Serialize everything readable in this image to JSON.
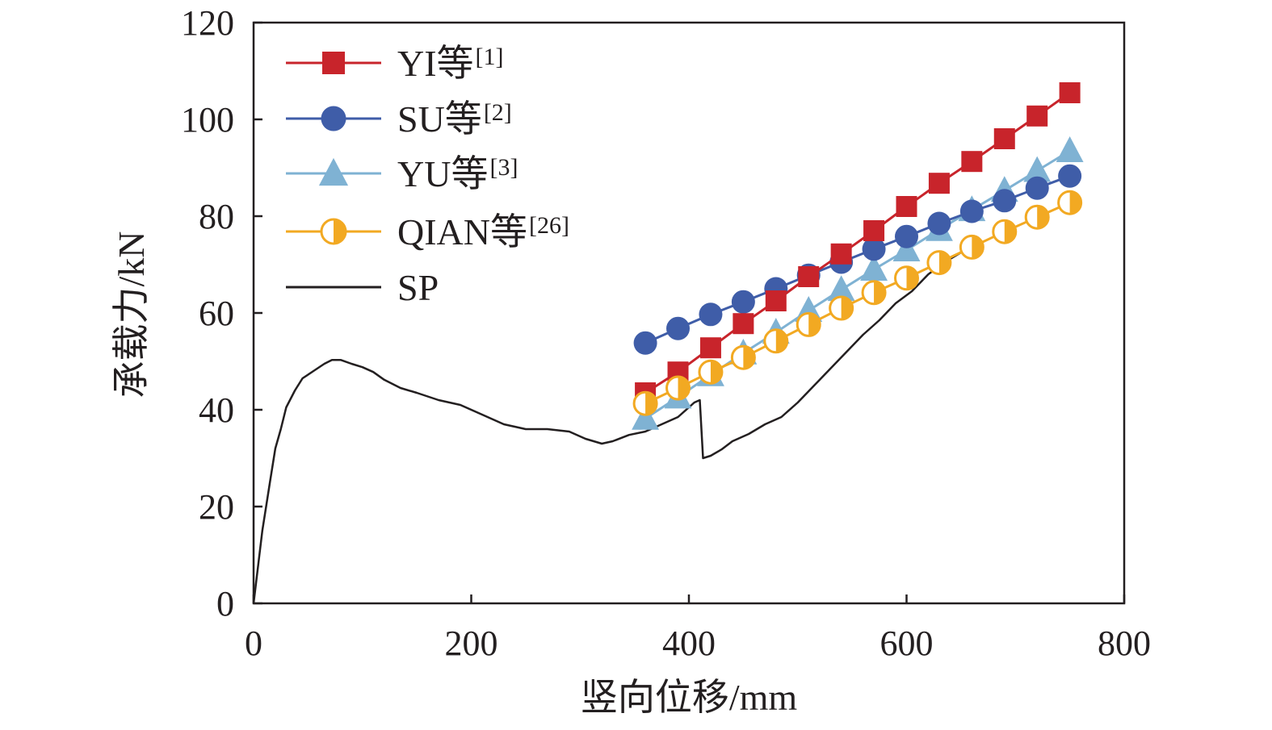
{
  "chart_data": {
    "type": "line",
    "xlabel": "竖向位移/mm",
    "ylabel": "承载力/kN",
    "xlim": [
      0,
      800
    ],
    "ylim": [
      0,
      120
    ],
    "xticks": [
      "0",
      "200",
      "400",
      "600",
      "800"
    ],
    "yticks": [
      "0",
      "20",
      "40",
      "60",
      "80",
      "100",
      "120"
    ],
    "grid": false,
    "legend_position": "top-left",
    "series": [
      {
        "name": "YI等",
        "ref": "[1]",
        "color": "#c8242b",
        "marker": "square",
        "x": [
          360,
          390,
          420,
          450,
          480,
          510,
          540,
          570,
          600,
          630,
          660,
          690,
          720,
          750
        ],
        "y": [
          43.5,
          47.8,
          52.8,
          57.8,
          62.5,
          67.5,
          72.2,
          77.0,
          82.0,
          86.8,
          91.3,
          96.0,
          100.7,
          105.5
        ]
      },
      {
        "name": "SU等",
        "ref": "[2]",
        "color": "#3f5da8",
        "marker": "circle",
        "x": [
          360,
          390,
          420,
          450,
          480,
          510,
          540,
          570,
          600,
          630,
          660,
          690,
          720,
          750
        ],
        "y": [
          53.8,
          56.8,
          59.7,
          62.3,
          65.0,
          67.8,
          70.5,
          73.2,
          75.8,
          78.5,
          81.0,
          83.2,
          85.8,
          88.3
        ]
      },
      {
        "name": "YU等",
        "ref": "[3]",
        "color": "#7fb2d3",
        "marker": "triangle",
        "x": [
          360,
          390,
          420,
          450,
          480,
          510,
          540,
          570,
          600,
          630,
          660,
          690,
          720,
          750
        ],
        "y": [
          38.2,
          42.6,
          47.2,
          51.7,
          56.0,
          60.5,
          64.8,
          69.0,
          73.0,
          77.2,
          81.3,
          85.3,
          89.4,
          93.5
        ]
      },
      {
        "name": "QIAN等",
        "ref": "[26]",
        "color": "#f2a922",
        "marker": "half-circle",
        "x": [
          360,
          390,
          420,
          450,
          480,
          510,
          540,
          570,
          600,
          630,
          660,
          690,
          720,
          750
        ],
        "y": [
          41.3,
          44.5,
          47.8,
          50.8,
          54.2,
          57.6,
          61.0,
          64.2,
          67.2,
          70.4,
          73.6,
          76.8,
          79.8,
          82.8
        ]
      },
      {
        "name": "SP",
        "color": "#231f20",
        "marker": "none",
        "x": [
          0,
          8,
          15,
          20,
          25,
          30,
          38,
          45,
          55,
          65,
          72,
          80,
          90,
          100,
          110,
          120,
          135,
          150,
          170,
          190,
          210,
          230,
          250,
          270,
          290,
          305,
          320,
          330,
          345,
          360,
          375,
          390,
          400,
          405,
          410,
          413,
          420,
          430,
          440,
          455,
          470,
          485,
          500,
          515,
          530,
          545,
          560,
          575,
          590,
          605,
          620,
          635,
          650,
          660
        ],
        "y": [
          0,
          15,
          25,
          32,
          36,
          40.5,
          44,
          46.5,
          48,
          49.5,
          50.3,
          50.3,
          49.5,
          48.8,
          47.8,
          46.2,
          44.5,
          43.5,
          42,
          41,
          39,
          37,
          36,
          36,
          35.5,
          34,
          33,
          33.5,
          34.8,
          35.5,
          37,
          38.5,
          40.5,
          41.5,
          42,
          30,
          30.5,
          31.8,
          33.5,
          35,
          37,
          38.5,
          41.5,
          45,
          48.5,
          52,
          55.5,
          58.5,
          62,
          64.5,
          68,
          70.5,
          72.5,
          73.5
        ]
      }
    ]
  }
}
